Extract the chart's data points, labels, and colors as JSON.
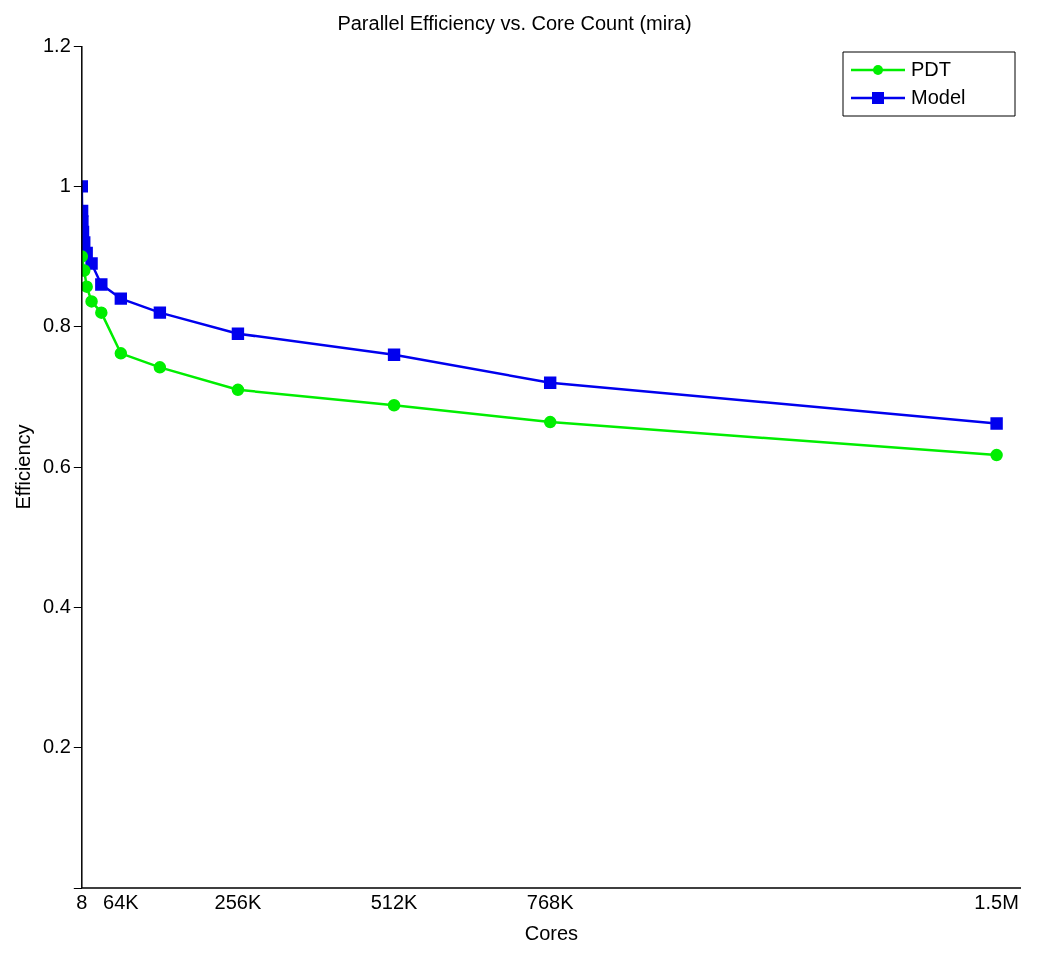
{
  "chart_data": {
    "type": "line",
    "title": "Parallel Efficiency vs. Core Count (mira)",
    "xlabel": "Cores",
    "ylabel": "Efficiency",
    "xlim": [
      0,
      1540000
    ],
    "xticks": [
      8,
      {
        "value": 64000,
        "label": "64K"
      },
      {
        "value": 256000,
        "label": "256K"
      },
      {
        "value": 512000,
        "label": "512K"
      },
      {
        "value": 768000,
        "label": "768K"
      },
      {
        "value": 1500000,
        "label": "1.5M"
      }
    ],
    "ylim": [
      0,
      1.2
    ],
    "yticks": [
      {
        "value": 0,
        "label": null
      },
      0.2,
      0.4,
      0.6,
      0.8,
      1,
      1.2
    ],
    "grid": false,
    "legend": "top right",
    "line_style": "solid",
    "series": [
      {
        "name": "PDT",
        "color": "#00ee00",
        "marker": "circle",
        "x": [
          8,
          4000,
          8000,
          16000,
          32000,
          64000,
          128000,
          256000,
          512000,
          768000,
          1500000
        ],
        "values": [
          0.9,
          0.88,
          0.857,
          0.836,
          0.82,
          0.762,
          0.742,
          0.71,
          0.688,
          0.664,
          0.617
        ]
      },
      {
        "name": "Model",
        "color": "#0000ee",
        "marker": "square",
        "x": [
          8,
          500,
          1000,
          2000,
          4000,
          8000,
          16000,
          32000,
          64000,
          128000,
          256000,
          512000,
          768000,
          1500000
        ],
        "values": [
          1.0,
          0.965,
          0.95,
          0.935,
          0.92,
          0.905,
          0.89,
          0.86,
          0.84,
          0.82,
          0.79,
          0.76,
          0.72,
          0.662
        ]
      }
    ]
  }
}
